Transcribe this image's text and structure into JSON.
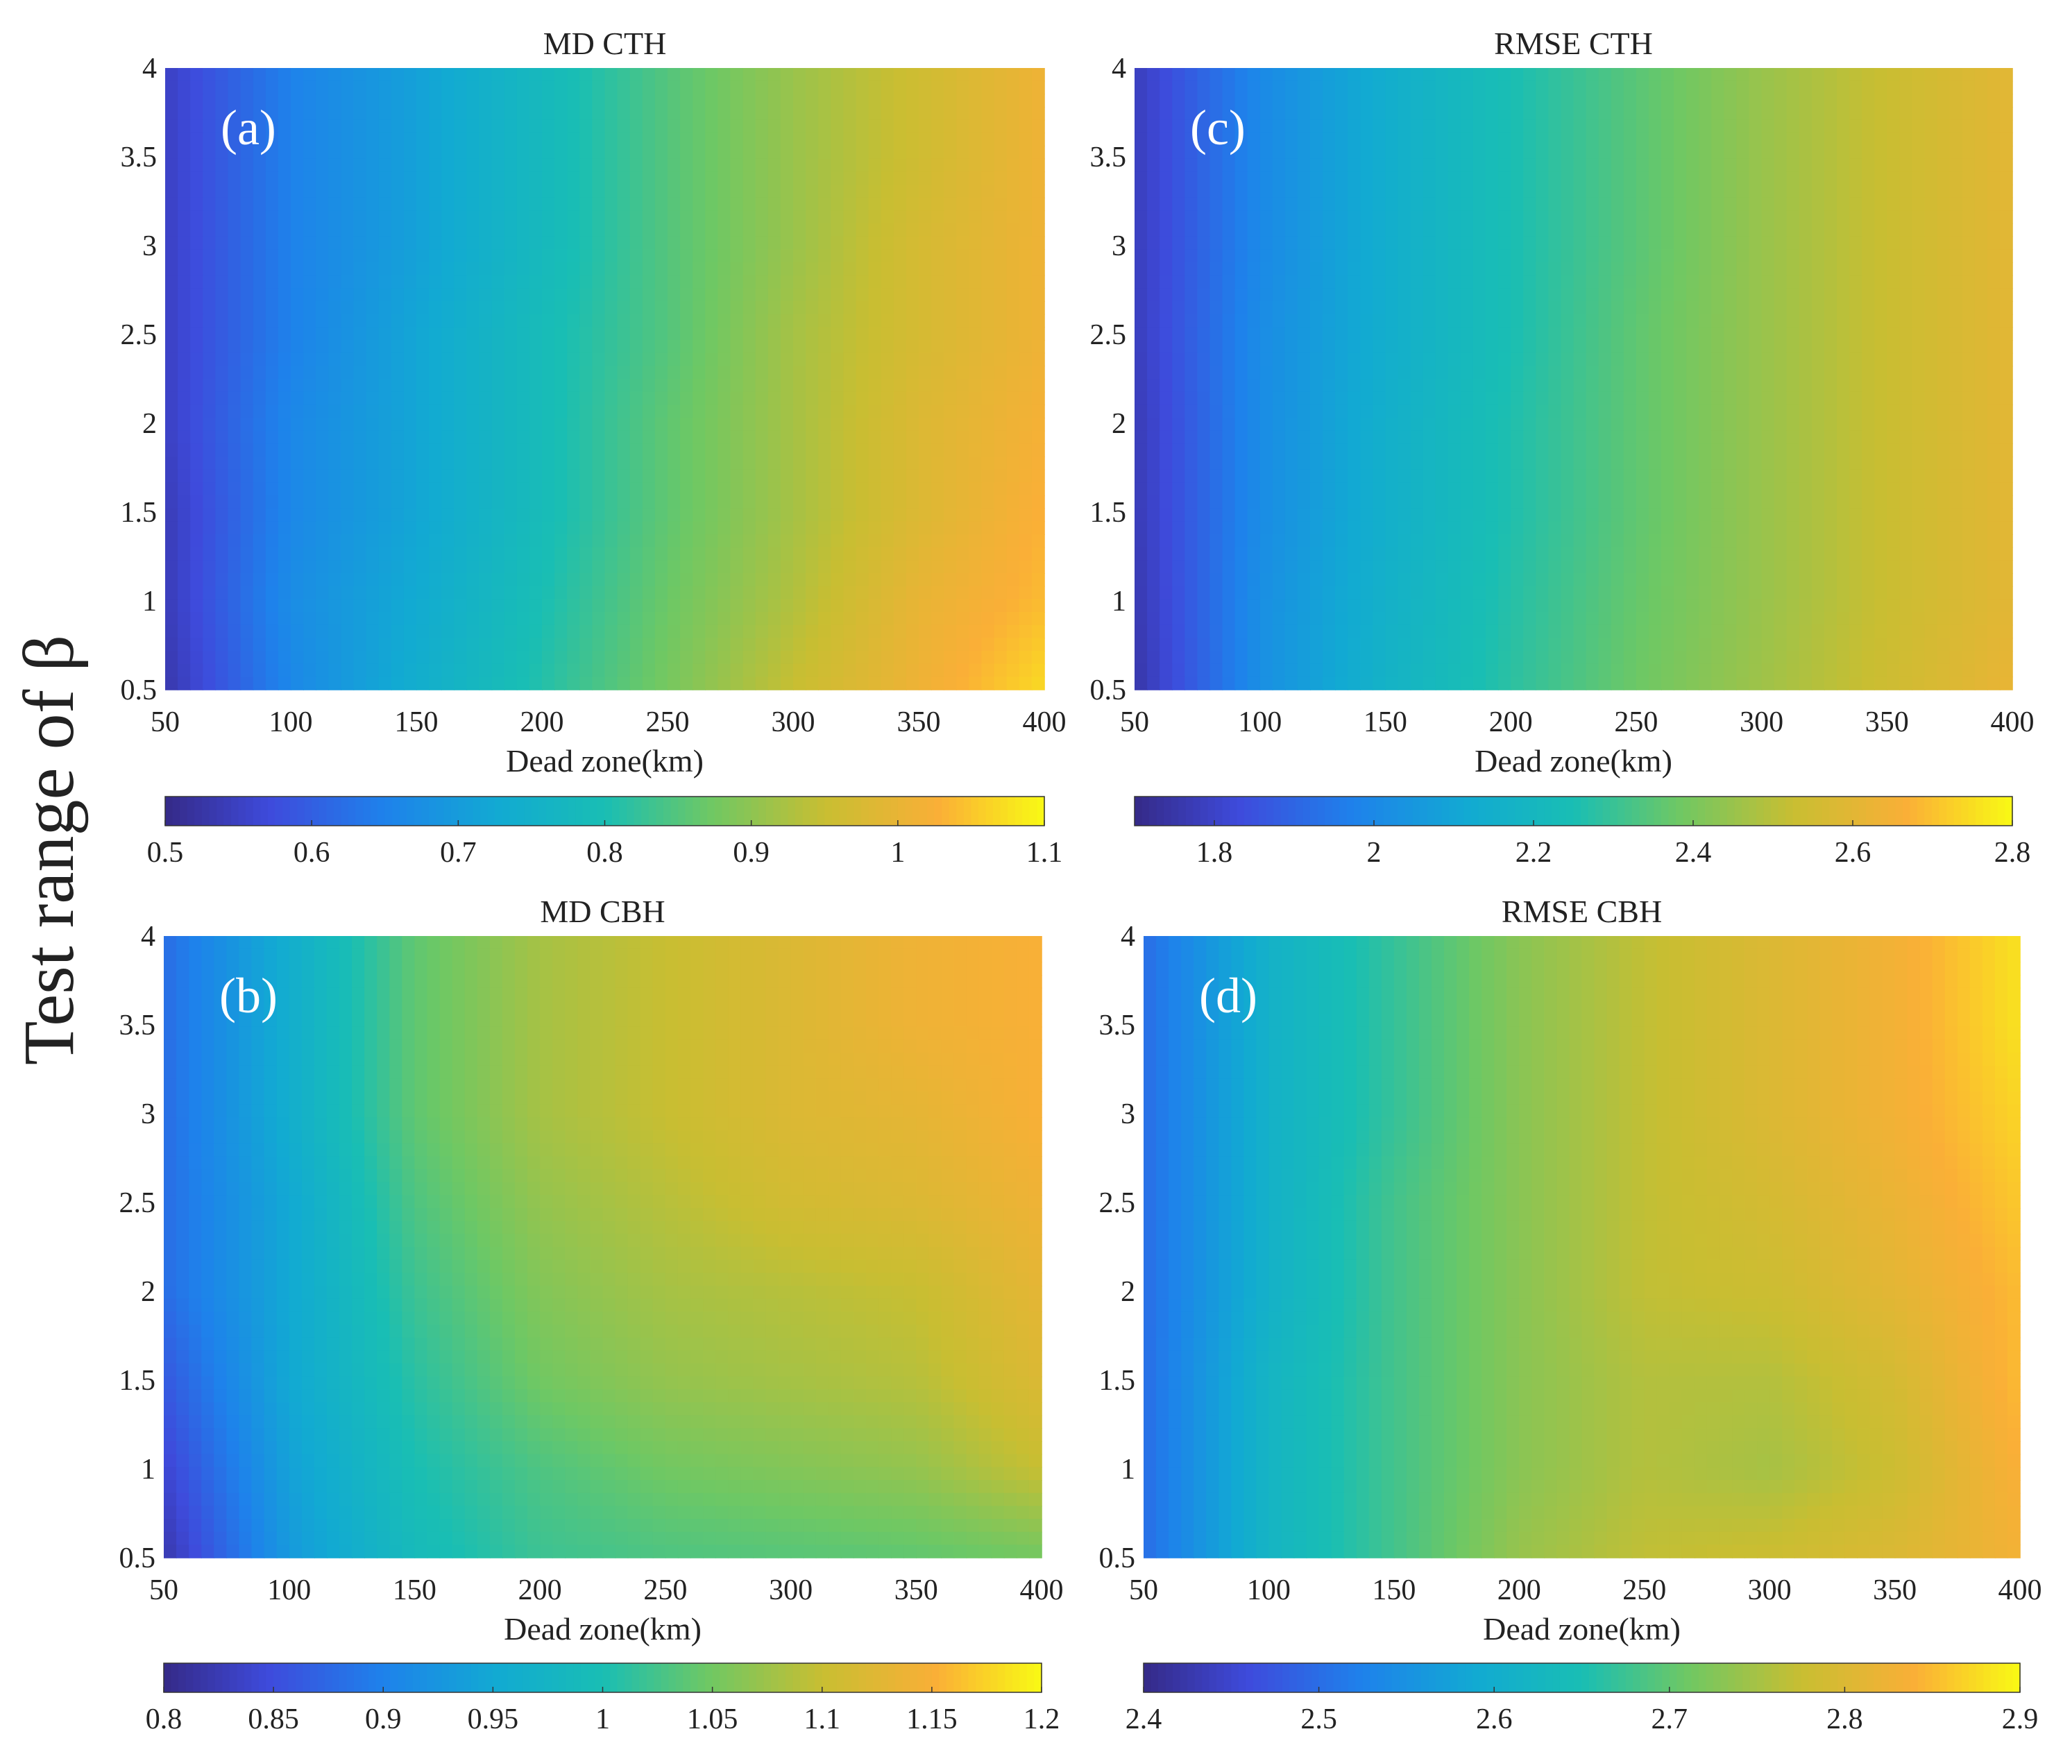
{
  "figure": {
    "shared_ylabel": "Test range of β"
  },
  "chart_data": [
    {
      "type": "heatmap",
      "title": "MD CTH",
      "panel_label": "(a)",
      "xlabel": "Dead zone(km)",
      "ylabel": "Test range of β",
      "xlim": [
        50,
        400
      ],
      "ylim": [
        0.5,
        4
      ],
      "x_ticks": [
        "50",
        "100",
        "150",
        "200",
        "250",
        "300",
        "350",
        "400"
      ],
      "y_ticks": [
        "0.5",
        "1",
        "1.5",
        "2",
        "2.5",
        "3",
        "3.5",
        "4"
      ],
      "x": [
        50,
        100,
        150,
        200,
        250,
        300,
        350,
        400
      ],
      "y": [
        0.5,
        1,
        1.5,
        2,
        2.5,
        3,
        3.5,
        4
      ],
      "z_rows_note": "rows ordered by y ascending",
      "z": [
        [
          0.53,
          0.66,
          0.74,
          0.81,
          0.88,
          0.95,
          1.01,
          1.07
        ],
        [
          0.54,
          0.67,
          0.73,
          0.8,
          0.87,
          0.93,
          1.0,
          1.04
        ],
        [
          0.54,
          0.66,
          0.72,
          0.79,
          0.86,
          0.92,
          0.98,
          1.03
        ],
        [
          0.55,
          0.66,
          0.72,
          0.79,
          0.86,
          0.92,
          0.98,
          1.02
        ],
        [
          0.55,
          0.65,
          0.72,
          0.79,
          0.85,
          0.92,
          0.97,
          1.01
        ],
        [
          0.55,
          0.65,
          0.71,
          0.78,
          0.85,
          0.91,
          0.97,
          1.01
        ],
        [
          0.55,
          0.65,
          0.71,
          0.78,
          0.85,
          0.91,
          0.96,
          1.01
        ],
        [
          0.55,
          0.65,
          0.71,
          0.78,
          0.85,
          0.91,
          0.96,
          1.01
        ]
      ],
      "colorbar": {
        "min": 0.5,
        "max": 1.1,
        "ticks": [
          0.5,
          0.6,
          0.7,
          0.8,
          0.9,
          1,
          1.1
        ],
        "tick_labels": [
          "0.5",
          "0.6",
          "0.7",
          "0.8",
          "0.9",
          "1",
          "1.1"
        ]
      }
    },
    {
      "type": "heatmap",
      "title": "RMSE CTH",
      "panel_label": "(c)",
      "xlabel": "Dead zone(km)",
      "ylabel": "Test range of β",
      "xlim": [
        50,
        400
      ],
      "ylim": [
        0.5,
        4
      ],
      "x_ticks": [
        "50",
        "100",
        "150",
        "200",
        "250",
        "300",
        "350",
        "400"
      ],
      "y_ticks": [
        "0.5",
        "1",
        "1.5",
        "2",
        "2.5",
        "3",
        "3.5",
        "4"
      ],
      "x": [
        50,
        100,
        150,
        200,
        250,
        300,
        350,
        400
      ],
      "y": [
        0.5,
        1,
        1.5,
        2,
        2.5,
        3,
        3.5,
        4
      ],
      "z_rows_note": "rows ordered by y ascending",
      "z": [
        [
          1.75,
          2.02,
          2.17,
          2.28,
          2.38,
          2.46,
          2.54,
          2.62
        ],
        [
          1.76,
          2.02,
          2.16,
          2.27,
          2.37,
          2.45,
          2.53,
          2.6
        ],
        [
          1.77,
          2.01,
          2.15,
          2.26,
          2.36,
          2.45,
          2.53,
          2.6
        ],
        [
          1.77,
          2.01,
          2.15,
          2.26,
          2.36,
          2.45,
          2.53,
          2.6
        ],
        [
          1.78,
          2.01,
          2.14,
          2.25,
          2.36,
          2.45,
          2.53,
          2.6
        ],
        [
          1.78,
          2.0,
          2.14,
          2.25,
          2.35,
          2.45,
          2.53,
          2.6
        ],
        [
          1.78,
          2.0,
          2.14,
          2.25,
          2.35,
          2.45,
          2.53,
          2.6
        ],
        [
          1.78,
          2.0,
          2.14,
          2.25,
          2.35,
          2.45,
          2.53,
          2.6
        ]
      ],
      "colorbar": {
        "min": 1.7,
        "max": 2.8,
        "ticks": [
          1.8,
          2,
          2.2,
          2.4,
          2.6,
          2.8
        ],
        "tick_labels": [
          "1.8",
          "2",
          "2.2",
          "2.4",
          "2.6",
          "2.8"
        ]
      }
    },
    {
      "type": "heatmap",
      "title": "MD CBH",
      "panel_label": "(b)",
      "xlabel": "Dead zone(km)",
      "ylabel": "Test range of β",
      "xlim": [
        50,
        400
      ],
      "ylim": [
        0.5,
        4
      ],
      "x_ticks": [
        "50",
        "100",
        "150",
        "200",
        "250",
        "300",
        "350",
        "400"
      ],
      "y_ticks": [
        "0.5",
        "1",
        "1.5",
        "2",
        "2.5",
        "3",
        "3.5",
        "4"
      ],
      "x": [
        50,
        100,
        150,
        200,
        250,
        300,
        350,
        400
      ],
      "y": [
        0.5,
        1,
        1.5,
        2,
        2.5,
        3,
        3.5,
        4
      ],
      "z_rows_note": "rows ordered by y ascending",
      "z": [
        [
          0.82,
          0.93,
          0.99,
          1.02,
          1.03,
          1.035,
          1.04,
          1.05
        ],
        [
          0.84,
          0.94,
          1.0,
          1.03,
          1.05,
          1.06,
          1.07,
          1.1
        ],
        [
          0.86,
          0.95,
          1.01,
          1.05,
          1.07,
          1.08,
          1.09,
          1.12
        ],
        [
          0.88,
          0.95,
          1.02,
          1.06,
          1.08,
          1.09,
          1.1,
          1.13
        ],
        [
          0.88,
          0.95,
          1.03,
          1.07,
          1.09,
          1.11,
          1.12,
          1.14
        ],
        [
          0.88,
          0.96,
          1.04,
          1.08,
          1.1,
          1.12,
          1.13,
          1.15
        ],
        [
          0.88,
          0.96,
          1.04,
          1.08,
          1.1,
          1.12,
          1.14,
          1.15
        ],
        [
          0.88,
          0.96,
          1.04,
          1.08,
          1.1,
          1.12,
          1.14,
          1.15
        ]
      ],
      "colorbar": {
        "min": 0.8,
        "max": 1.2,
        "ticks": [
          0.8,
          0.85,
          0.9,
          0.95,
          1,
          1.05,
          1.1,
          1.15,
          1.2
        ],
        "tick_labels": [
          "0.8",
          "0.85",
          "0.9",
          "0.95",
          "1",
          "1.05",
          "1.1",
          "1.15",
          "1.2"
        ]
      }
    },
    {
      "type": "heatmap",
      "title": "RMSE CBH",
      "panel_label": "(d)",
      "xlabel": "Dead zone(km)",
      "ylabel": "Test range of β",
      "xlim": [
        50,
        400
      ],
      "ylim": [
        0.5,
        4
      ],
      "x_ticks": [
        "50",
        "100",
        "150",
        "200",
        "250",
        "300",
        "350",
        "400"
      ],
      "y_ticks": [
        "0.5",
        "1",
        "1.5",
        "2",
        "2.5",
        "3",
        "3.5",
        "4"
      ],
      "x": [
        50,
        100,
        150,
        200,
        250,
        300,
        350,
        400
      ],
      "y": [
        0.5,
        1,
        1.5,
        2,
        2.5,
        3,
        3.5,
        4
      ],
      "z_rows_note": "rows ordered by y ascending",
      "z": [
        [
          2.5,
          2.62,
          2.68,
          2.74,
          2.77,
          2.78,
          2.8,
          2.83
        ],
        [
          2.5,
          2.62,
          2.68,
          2.73,
          2.76,
          2.75,
          2.78,
          2.84
        ],
        [
          2.5,
          2.62,
          2.68,
          2.73,
          2.76,
          2.76,
          2.79,
          2.85
        ],
        [
          2.5,
          2.61,
          2.68,
          2.73,
          2.77,
          2.78,
          2.81,
          2.85
        ],
        [
          2.5,
          2.61,
          2.68,
          2.73,
          2.77,
          2.79,
          2.82,
          2.86
        ],
        [
          2.5,
          2.61,
          2.67,
          2.73,
          2.77,
          2.8,
          2.83,
          2.87
        ],
        [
          2.5,
          2.61,
          2.67,
          2.73,
          2.77,
          2.8,
          2.83,
          2.88
        ],
        [
          2.5,
          2.61,
          2.67,
          2.73,
          2.77,
          2.8,
          2.83,
          2.88
        ]
      ],
      "colorbar": {
        "min": 2.4,
        "max": 2.9,
        "ticks": [
          2.4,
          2.5,
          2.6,
          2.7,
          2.8,
          2.9
        ],
        "tick_labels": [
          "2.4",
          "2.5",
          "2.6",
          "2.7",
          "2.8",
          "2.9"
        ]
      }
    }
  ]
}
